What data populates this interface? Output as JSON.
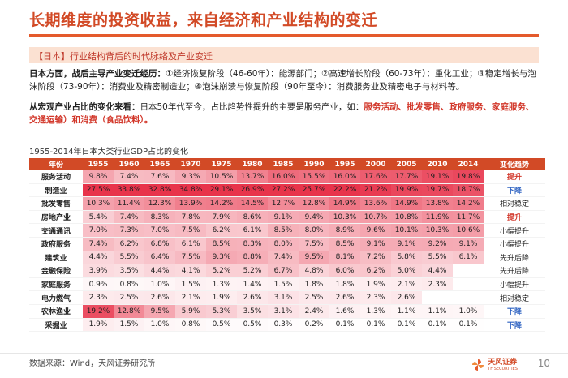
{
  "title": "长期维度的投资收益，来自经济和产业结构的变迁",
  "subheading": "【日本】行业结构背后的时代脉络及产业变迁",
  "para1": {
    "lead": "日本方面，战后主导产业变迁经历：",
    "text": "①经济恢复阶段（46-60年）：能源部门；②高速增长阶段（60-73年）：重化工业；③稳定增长与泡沫阶段（73-90年）：消费业及精密制造业；④泡沫崩溃与恢复阶段（90年至今）：消费服务业及精密电子与材料等。"
  },
  "para2": {
    "lead": "从宏观产业占比的变化来看：",
    "text": "日本50年代至今，占比趋势性提升的主要是服务产业，如：",
    "highlight": "服务活动、批发零售、政府服务、家庭服务、交通运输）和消费（食品饮料）。"
  },
  "caption": "1955-2014年日本大类行业GDP占比的变化",
  "table": {
    "corner": "年份",
    "years": [
      "1955",
      "1960",
      "1965",
      "1970",
      "1975",
      "1980",
      "1985",
      "1990",
      "1995",
      "2000",
      "2005",
      "2010",
      "2014"
    ],
    "trend_header": "变化趋势",
    "rows": [
      {
        "name": "服务活动",
        "values": [
          "9.8%",
          "7.4%",
          "7.6%",
          "9.3%",
          "10.5%",
          "13.7%",
          "16.0%",
          "15.5%",
          "16.0%",
          "17.6%",
          "17.7%",
          "19.1%",
          "19.8%"
        ],
        "trend": "提升",
        "tone": "up"
      },
      {
        "name": "制造业",
        "values": [
          "27.5%",
          "33.8%",
          "32.8%",
          "34.8%",
          "29.1%",
          "26.9%",
          "27.2%",
          "25.7%",
          "22.2%",
          "21.2%",
          "19.9%",
          "19.7%",
          "18.7%"
        ],
        "trend": "下降",
        "tone": "down"
      },
      {
        "name": "批发零售",
        "values": [
          "10.3%",
          "11.4%",
          "12.3%",
          "13.9%",
          "14.2%",
          "14.5%",
          "12.7%",
          "12.8%",
          "14.9%",
          "13.6%",
          "14.9%",
          "13.8%",
          "14.2%"
        ],
        "trend": "相对稳定",
        "tone": "flat"
      },
      {
        "name": "房地产业",
        "values": [
          "5.4%",
          "7.4%",
          "8.3%",
          "7.8%",
          "7.9%",
          "8.6%",
          "9.1%",
          "9.4%",
          "10.3%",
          "10.7%",
          "10.8%",
          "11.9%",
          "11.7%"
        ],
        "trend": "提升",
        "tone": "up"
      },
      {
        "name": "交通通讯",
        "values": [
          "7.0%",
          "7.3%",
          "7.0%",
          "7.5%",
          "6.2%",
          "6.1%",
          "8.5%",
          "8.0%",
          "8.9%",
          "9.6%",
          "10.1%",
          "10.3%",
          "10.6%"
        ],
        "trend": "小幅提升",
        "tone": "flat"
      },
      {
        "name": "政府服务",
        "values": [
          "7.4%",
          "6.2%",
          "6.8%",
          "6.1%",
          "8.5%",
          "8.3%",
          "8.0%",
          "7.5%",
          "8.5%",
          "9.1%",
          "9.1%",
          "9.2%",
          "9.1%"
        ],
        "trend": "小幅提升",
        "tone": "flat"
      },
      {
        "name": "建筑业",
        "values": [
          "4.4%",
          "5.5%",
          "6.4%",
          "7.5%",
          "9.3%",
          "8.8%",
          "7.4%",
          "9.5%",
          "8.1%",
          "7.2%",
          "5.8%",
          "5.5%",
          "6.1%"
        ],
        "trend": "先升后降",
        "tone": "flat"
      },
      {
        "name": "金融保险",
        "values": [
          "3.9%",
          "3.5%",
          "4.4%",
          "4.1%",
          "5.2%",
          "5.2%",
          "6.7%",
          "4.8%",
          "6.0%",
          "6.2%",
          "5.0%",
          "4.4%",
          ""
        ],
        "trend": "先升后降",
        "tone": "flat"
      },
      {
        "name": "家庭服务",
        "values": [
          "0.9%",
          "0.8%",
          "1.0%",
          "1.5%",
          "1.3%",
          "1.4%",
          "1.5%",
          "1.8%",
          "1.8%",
          "1.9%",
          "2.1%",
          "2.3%",
          ""
        ],
        "trend": "小幅提升",
        "tone": "flat"
      },
      {
        "name": "电力燃气",
        "values": [
          "2.3%",
          "2.5%",
          "2.6%",
          "2.1%",
          "1.9%",
          "2.6%",
          "3.1%",
          "2.5%",
          "2.6%",
          "2.3%",
          "2.6%",
          "",
          ""
        ],
        "trend": "相对稳定",
        "tone": "flat"
      },
      {
        "name": "农林渔业",
        "values": [
          "19.2%",
          "12.8%",
          "9.5%",
          "5.9%",
          "5.3%",
          "3.5%",
          "3.1%",
          "2.4%",
          "1.6%",
          "1.3%",
          "1.1%",
          "1.1%",
          "1.0%"
        ],
        "trend": "下降",
        "tone": "down"
      },
      {
        "name": "采掘业",
        "values": [
          "1.9%",
          "1.5%",
          "1.0%",
          "0.8%",
          "0.5%",
          "0.5%",
          "0.3%",
          "0.2%",
          "0.1%",
          "0.1%",
          "0.1%",
          "0.1%",
          "0.1%"
        ],
        "trend": "下降",
        "tone": "down"
      }
    ]
  },
  "footer": {
    "source": "数据来源：Wind，天风证券研究所",
    "logo_name": "天风证券",
    "logo_en": "TF SECURITIES",
    "page": "10"
  },
  "colors": {
    "brand": "#d24a26",
    "heat_high": "#e8344b",
    "heat_low": "#ffffff",
    "trend_up": "#d2372a",
    "trend_down": "#2f63c2"
  }
}
